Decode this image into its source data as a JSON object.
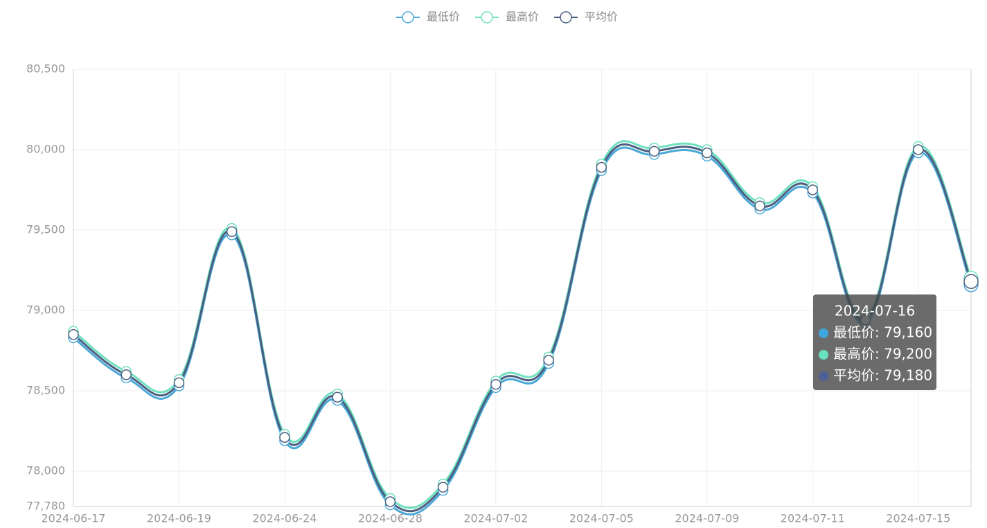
{
  "chart_data": {
    "type": "line",
    "categories": [
      "2024-06-17",
      null,
      "2024-06-19",
      null,
      "2024-06-24",
      null,
      "2024-06-28",
      null,
      "2024-07-02",
      null,
      "2024-07-05",
      null,
      "2024-07-09",
      null,
      "2024-07-11",
      null,
      "2024-07-15",
      null
    ],
    "series": [
      {
        "name": "最低价",
        "color": "#4aa8d8",
        "values": [
          78830,
          78580,
          78530,
          79470,
          78190,
          78440,
          77790,
          77880,
          78520,
          78670,
          79870,
          79970,
          79960,
          79630,
          79730,
          78920,
          79980,
          79160
        ]
      },
      {
        "name": "最高价",
        "color": "#6fe0c0",
        "values": [
          78870,
          78620,
          78570,
          79510,
          78230,
          78480,
          77830,
          77920,
          78560,
          78710,
          79910,
          80010,
          80000,
          79670,
          79770,
          78960,
          80020,
          79200
        ]
      },
      {
        "name": "平均价",
        "color": "#4a5f80",
        "values": [
          78850,
          78600,
          78550,
          79490,
          78210,
          78460,
          77810,
          77900,
          78540,
          78690,
          79890,
          79990,
          79980,
          79650,
          79750,
          78940,
          80000,
          79180
        ]
      }
    ],
    "ylim": [
      77780,
      80500
    ],
    "yticks": [
      {
        "value": 77780,
        "label": "77,780"
      },
      {
        "value": 78000,
        "label": "78,000"
      },
      {
        "value": 78500,
        "label": "78,500"
      },
      {
        "value": 79000,
        "label": "79,000"
      },
      {
        "value": 79500,
        "label": "79,500"
      },
      {
        "value": 80000,
        "label": "80,000"
      },
      {
        "value": 80500,
        "label": "80,500"
      }
    ],
    "grid": true,
    "legend": "top",
    "tooltip": {
      "title": "2024-07-16",
      "labels": [
        "最低价: 79,160",
        "最高价: 79,200",
        "平均价: 79,180"
      ],
      "colors": [
        "#3fa7dc",
        "#67e0bf",
        "#4e5e96"
      ]
    }
  }
}
